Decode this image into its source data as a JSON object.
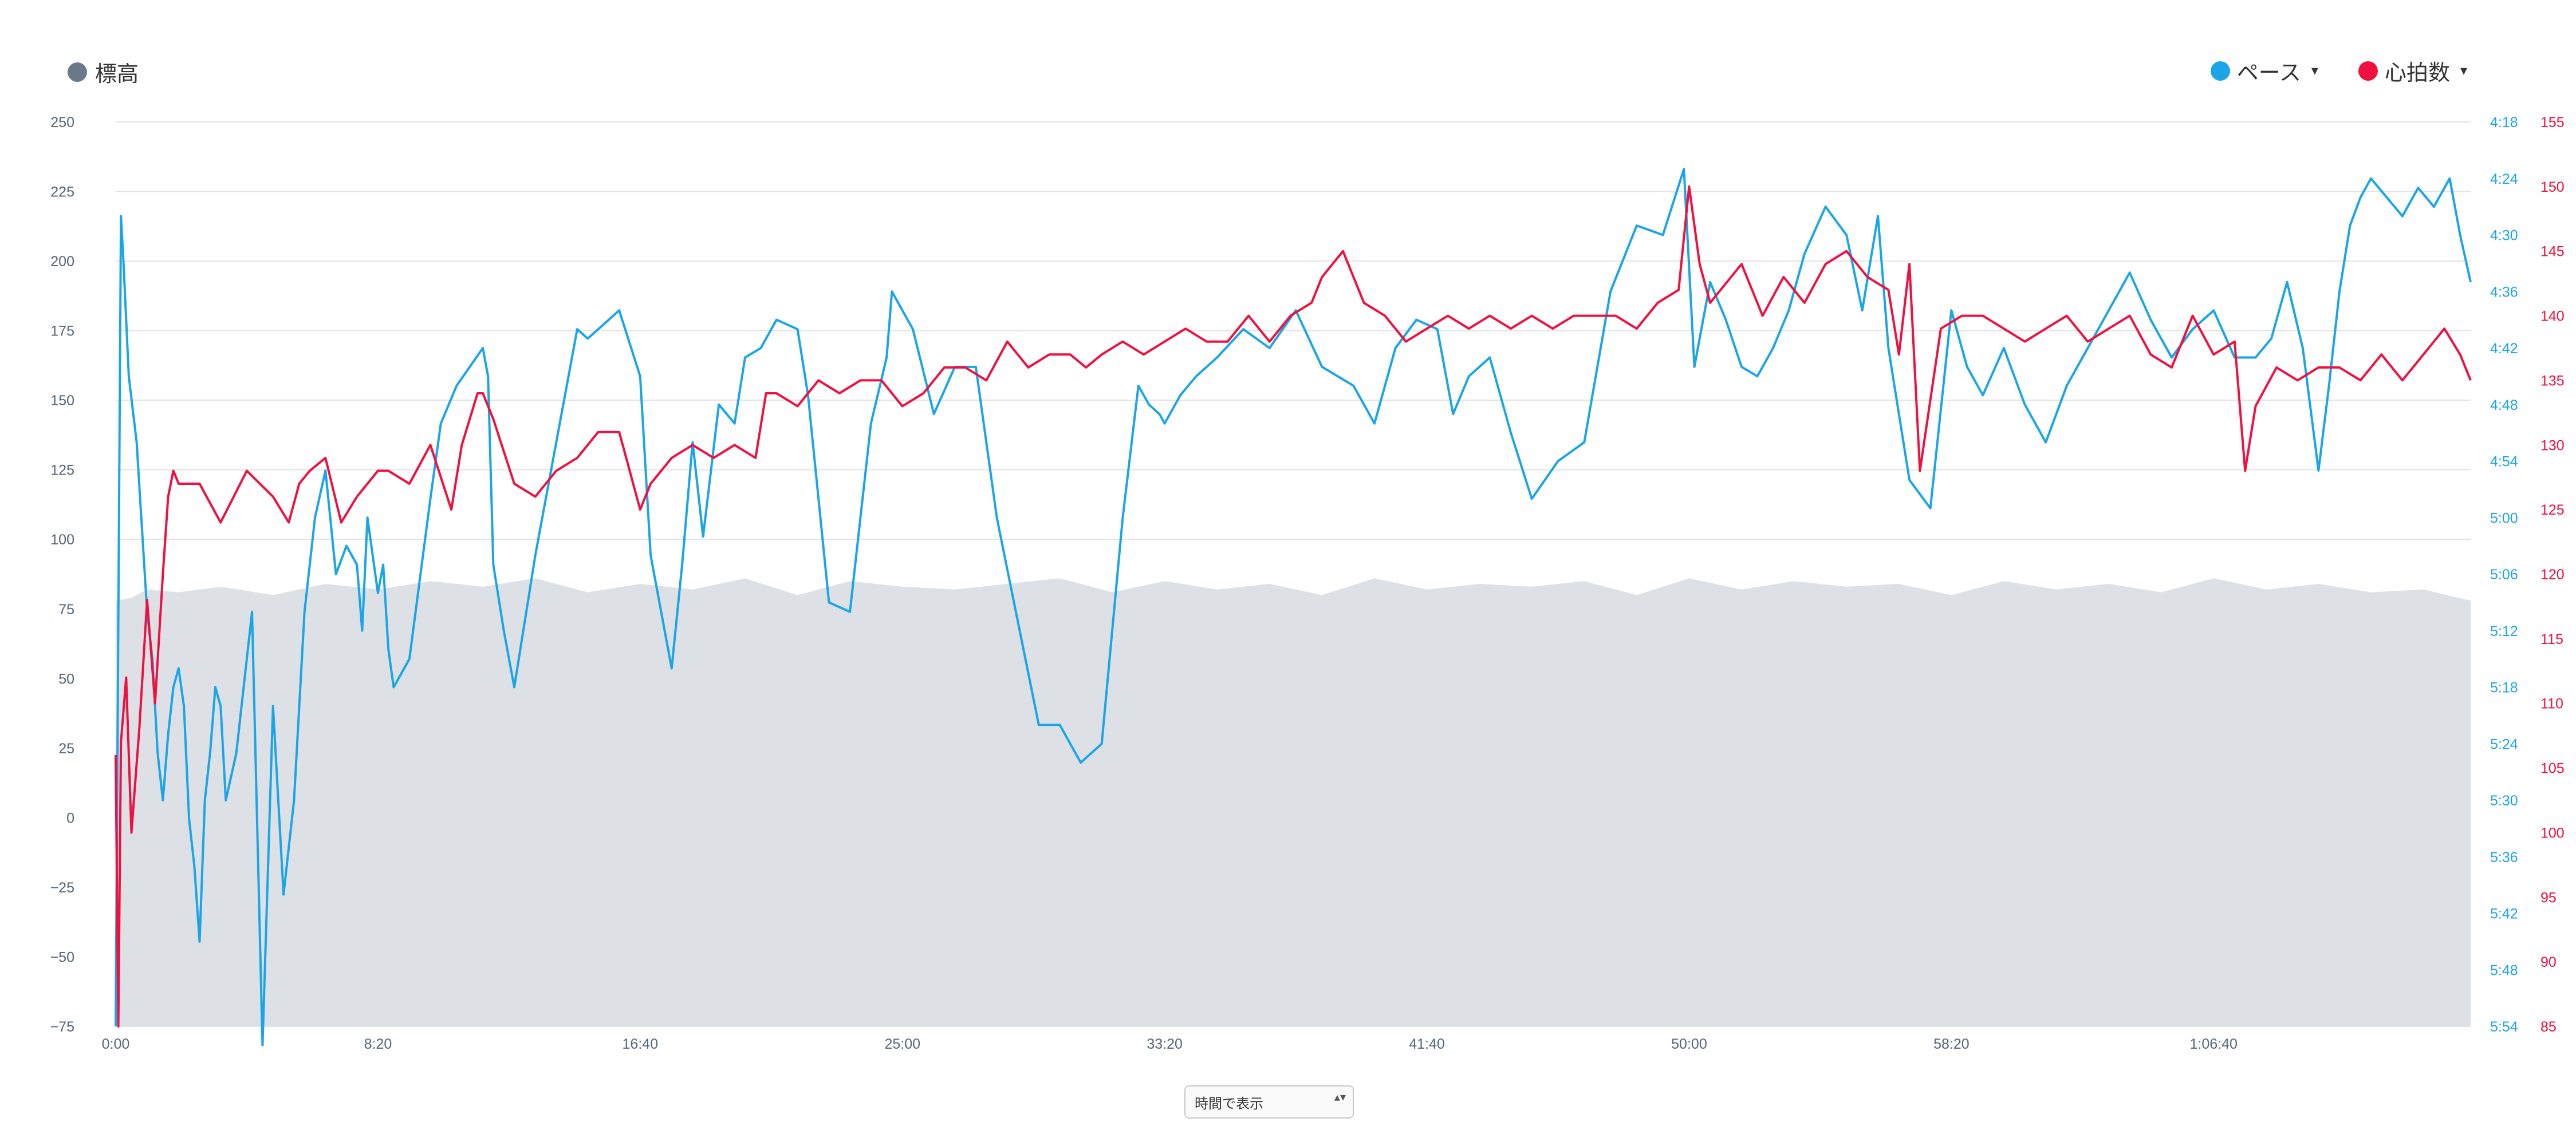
{
  "legend": {
    "elevation_label": "標高",
    "pace_label": "ペース",
    "hr_label": "心拍数",
    "caret": "▾"
  },
  "colors": {
    "elevation": "#6b7a8a",
    "elevation_fill": "#dde1e6",
    "pace": "#1aa5e8",
    "hr": "#f0103f",
    "grid": "#e3e3e3",
    "tick_left": "#556677"
  },
  "mode_select": {
    "value": "時間で表示",
    "arrows": "▴▾"
  },
  "chart_data": {
    "type": "line",
    "title": "",
    "x_unit": "elapsed time (seconds)",
    "x_range": [
      0,
      4490
    ],
    "x_ticks": [
      {
        "t": 0,
        "label": "0:00"
      },
      {
        "t": 500,
        "label": "8:20"
      },
      {
        "t": 1000,
        "label": "16:40"
      },
      {
        "t": 1500,
        "label": "25:00"
      },
      {
        "t": 2000,
        "label": "33:20"
      },
      {
        "t": 2500,
        "label": "41:40"
      },
      {
        "t": 3000,
        "label": "50:00"
      },
      {
        "t": 3500,
        "label": "58:20"
      },
      {
        "t": 4000,
        "label": "1:06:40"
      }
    ],
    "axes": {
      "elevation": {
        "range": [
          -75,
          250
        ],
        "ticks": [
          "250",
          "225",
          "200",
          "175",
          "150",
          "125",
          "100",
          "75",
          "50",
          "25",
          "0",
          "−25",
          "−50",
          "−75"
        ],
        "tick_values": [
          250,
          225,
          200,
          175,
          150,
          125,
          100,
          75,
          50,
          25,
          0,
          -25,
          -50,
          -75
        ]
      },
      "pace": {
        "range": [
          354,
          258
        ],
        "unit": "sec per km",
        "ticks": [
          "4:18",
          "4:24",
          "4:30",
          "4:36",
          "4:42",
          "4:48",
          "4:54",
          "5:00",
          "5:06",
          "5:12",
          "5:18",
          "5:24",
          "5:30",
          "5:36",
          "5:42",
          "5:48",
          "5:54"
        ]
      },
      "hr": {
        "range": [
          85,
          155
        ],
        "ticks": [
          "155",
          "150",
          "145",
          "140",
          "135",
          "130",
          "125",
          "120",
          "115",
          "110",
          "105",
          "100",
          "95",
          "90",
          "85"
        ]
      }
    },
    "series": [
      {
        "name": "標高",
        "kind": "area",
        "x": [
          0,
          30,
          60,
          120,
          200,
          300,
          400,
          500,
          600,
          700,
          800,
          900,
          1000,
          1100,
          1200,
          1300,
          1400,
          1500,
          1600,
          1700,
          1800,
          1900,
          2000,
          2100,
          2200,
          2300,
          2400,
          2500,
          2600,
          2700,
          2800,
          2900,
          3000,
          3100,
          3200,
          3300,
          3400,
          3500,
          3600,
          3700,
          3800,
          3900,
          4000,
          4100,
          4200,
          4300,
          4400,
          4490
        ],
        "y": [
          78,
          79,
          82,
          81,
          83,
          80,
          84,
          82,
          85,
          83,
          86,
          81,
          84,
          82,
          86,
          80,
          85,
          83,
          82,
          84,
          86,
          81,
          85,
          82,
          84,
          80,
          86,
          82,
          84,
          83,
          85,
          80,
          86,
          82,
          85,
          83,
          84,
          80,
          85,
          82,
          84,
          81,
          86,
          82,
          84,
          81,
          82,
          78
        ]
      },
      {
        "name": "ペース",
        "unit": "sec/km",
        "x": [
          0,
          10,
          15,
          25,
          40,
          60,
          70,
          80,
          90,
          100,
          110,
          120,
          130,
          140,
          150,
          160,
          170,
          180,
          190,
          200,
          210,
          230,
          260,
          280,
          300,
          320,
          340,
          360,
          380,
          400,
          420,
          440,
          460,
          470,
          480,
          500,
          510,
          520,
          530,
          560,
          600,
          620,
          650,
          700,
          710,
          720,
          740,
          760,
          800,
          840,
          880,
          900,
          960,
          1000,
          1020,
          1060,
          1080,
          1100,
          1120,
          1150,
          1180,
          1200,
          1230,
          1260,
          1300,
          1320,
          1360,
          1400,
          1440,
          1470,
          1480,
          1520,
          1560,
          1600,
          1640,
          1680,
          1720,
          1760,
          1800,
          1840,
          1880,
          1920,
          1950,
          1970,
          1990,
          2000,
          2030,
          2060,
          2100,
          2150,
          2200,
          2250,
          2300,
          2360,
          2400,
          2440,
          2480,
          2520,
          2550,
          2580,
          2620,
          2660,
          2700,
          2750,
          2800,
          2850,
          2900,
          2950,
          2990,
          3010,
          3040,
          3070,
          3100,
          3130,
          3160,
          3190,
          3220,
          3260,
          3300,
          3330,
          3360,
          3380,
          3420,
          3460,
          3500,
          3530,
          3560,
          3600,
          3640,
          3680,
          3720,
          3760,
          3800,
          3840,
          3880,
          3920,
          3960,
          4000,
          4040,
          4080,
          4110,
          4140,
          4170,
          4200,
          4220,
          4240,
          4260,
          4280,
          4300,
          4330,
          4360,
          4390,
          4420,
          4450,
          4470,
          4490
        ],
        "y": [
          354,
          268,
          273,
          285,
          292,
          310,
          315,
          325,
          330,
          323,
          318,
          316,
          320,
          332,
          337,
          345,
          330,
          325,
          318,
          320,
          330,
          325,
          310,
          356,
          320,
          340,
          330,
          310,
          300,
          295,
          306,
          303,
          305,
          312,
          300,
          308,
          305,
          314,
          318,
          315,
          298,
          290,
          286,
          282,
          285,
          305,
          312,
          318,
          304,
          292,
          280,
          281,
          278,
          285,
          304,
          316,
          305,
          292,
          302,
          288,
          290,
          283,
          282,
          279,
          280,
          287,
          309,
          310,
          290,
          283,
          276,
          280,
          289,
          284,
          284,
          300,
          311,
          322,
          322,
          326,
          324,
          300,
          286,
          288,
          289,
          290,
          287,
          285,
          283,
          280,
          282,
          278,
          284,
          286,
          290,
          282,
          279,
          280,
          289,
          285,
          283,
          291,
          298,
          294,
          292,
          276,
          269,
          270,
          263,
          284,
          275,
          279,
          284,
          285,
          282,
          278,
          272,
          267,
          270,
          278,
          268,
          282,
          296,
          299,
          278,
          284,
          287,
          282,
          288,
          292,
          286,
          282,
          278,
          274,
          279,
          283,
          280,
          278,
          283,
          283,
          281,
          275,
          282,
          295,
          286,
          276,
          269,
          266,
          264,
          266,
          268,
          265,
          267,
          264,
          270,
          275
        ]
      },
      {
        "name": "心拍数",
        "unit": "bpm",
        "x": [
          0,
          5,
          10,
          20,
          30,
          45,
          60,
          75,
          90,
          100,
          110,
          120,
          140,
          160,
          200,
          250,
          300,
          330,
          350,
          370,
          400,
          430,
          460,
          500,
          520,
          560,
          600,
          640,
          660,
          690,
          700,
          720,
          760,
          800,
          840,
          880,
          920,
          960,
          1000,
          1020,
          1060,
          1100,
          1140,
          1180,
          1220,
          1240,
          1260,
          1300,
          1340,
          1380,
          1420,
          1460,
          1500,
          1540,
          1580,
          1620,
          1660,
          1700,
          1740,
          1780,
          1820,
          1850,
          1880,
          1920,
          1960,
          2000,
          2040,
          2080,
          2120,
          2160,
          2200,
          2240,
          2280,
          2300,
          2340,
          2380,
          2420,
          2460,
          2500,
          2540,
          2580,
          2620,
          2660,
          2700,
          2740,
          2780,
          2820,
          2860,
          2900,
          2940,
          2980,
          3000,
          3020,
          3040,
          3060,
          3100,
          3140,
          3180,
          3220,
          3260,
          3300,
          3340,
          3380,
          3400,
          3420,
          3440,
          3480,
          3520,
          3560,
          3600,
          3640,
          3680,
          3720,
          3760,
          3800,
          3840,
          3880,
          3920,
          3960,
          4000,
          4040,
          4060,
          4080,
          4120,
          4160,
          4200,
          4240,
          4280,
          4320,
          4360,
          4400,
          4440,
          4470,
          4490
        ],
        "y": [
          106,
          85,
          107,
          112,
          100,
          108,
          118,
          110,
          120,
          126,
          128,
          127,
          127,
          127,
          124,
          128,
          126,
          124,
          127,
          128,
          129,
          124,
          126,
          128,
          128,
          127,
          130,
          125,
          130,
          134,
          134,
          132,
          127,
          126,
          128,
          129,
          131,
          131,
          125,
          127,
          129,
          130,
          129,
          130,
          129,
          134,
          134,
          133,
          135,
          134,
          135,
          135,
          133,
          134,
          136,
          136,
          135,
          138,
          136,
          137,
          137,
          136,
          137,
          138,
          137,
          138,
          139,
          138,
          138,
          140,
          138,
          140,
          141,
          143,
          145,
          141,
          140,
          138,
          139,
          140,
          139,
          140,
          139,
          140,
          139,
          140,
          140,
          140,
          139,
          141,
          142,
          150,
          144,
          141,
          142,
          144,
          140,
          143,
          141,
          144,
          145,
          143,
          142,
          137,
          144,
          128,
          139,
          140,
          140,
          139,
          138,
          139,
          140,
          138,
          139,
          140,
          137,
          136,
          140,
          137,
          138,
          128,
          133,
          136,
          135,
          136,
          136,
          135,
          137,
          135,
          137,
          139,
          137,
          135
        ]
      }
    ]
  }
}
